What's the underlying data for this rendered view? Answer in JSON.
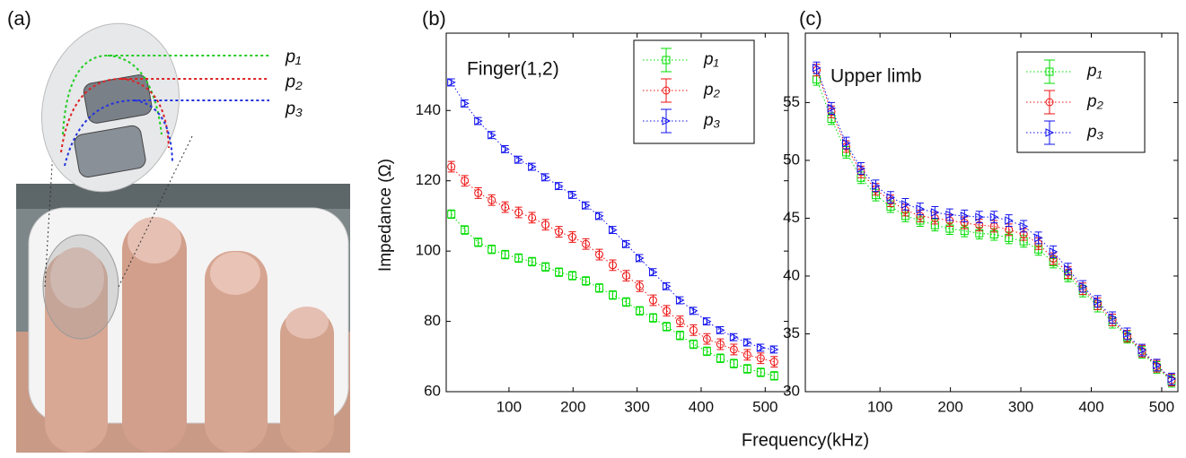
{
  "panel_a": {
    "label": "(a)",
    "levels": [
      "p₁",
      "p₂",
      "p₃"
    ]
  },
  "xlabel": "Frequency(kHz)",
  "chart_data": [
    {
      "type": "line",
      "panel": "(b)",
      "title": "Finger(1,2)",
      "ylabel": "Impedance (Ω)",
      "x": [
        10,
        31,
        52,
        73,
        94,
        115,
        136,
        157,
        178,
        199,
        220,
        241,
        262,
        283,
        304,
        325,
        346,
        367,
        388,
        409,
        430,
        451,
        472,
        493,
        514
      ],
      "xlim": [
        2,
        536
      ],
      "xticks": [
        100,
        200,
        300,
        400,
        500
      ],
      "ylim": [
        60,
        162
      ],
      "yticks": [
        60,
        80,
        100,
        120,
        140
      ],
      "legend": "upper right",
      "series": [
        {
          "name": "p₁",
          "color": "#00dd00",
          "marker": "square",
          "error": 1.2,
          "values": [
            110.5,
            106,
            102.5,
            100.5,
            99,
            98,
            97,
            95.5,
            94,
            93,
            91.5,
            89.5,
            87.5,
            85.5,
            83,
            81,
            78.5,
            76,
            73.5,
            71.5,
            69.5,
            68,
            66.5,
            65.5,
            64.5
          ]
        },
        {
          "name": "p₂",
          "color": "#ee1111",
          "marker": "circle",
          "error": 1.5,
          "values": [
            124,
            120,
            116.5,
            114.5,
            112.5,
            111,
            109.5,
            107.5,
            105.5,
            104,
            102,
            99,
            96,
            93,
            90,
            86,
            83,
            80,
            77.5,
            75,
            73.5,
            72,
            70.5,
            69.5,
            68.5
          ]
        },
        {
          "name": "p₃",
          "color": "#1111ee",
          "marker": "triangle",
          "error": 1,
          "values": [
            148,
            142,
            137,
            133,
            129,
            126,
            124,
            121,
            118.5,
            116,
            113,
            110,
            106,
            102,
            98,
            94,
            90,
            86,
            83,
            80,
            77.5,
            75.5,
            74,
            72.5,
            72
          ]
        }
      ]
    },
    {
      "type": "line",
      "panel": "(c)",
      "title": "Upper limb",
      "x": [
        10,
        31,
        52,
        73,
        94,
        115,
        136,
        157,
        178,
        199,
        220,
        241,
        262,
        283,
        304,
        325,
        346,
        367,
        388,
        409,
        430,
        451,
        472,
        493,
        514
      ],
      "xlim": [
        -6,
        523
      ],
      "xticks": [
        100,
        200,
        300,
        400,
        500
      ],
      "ylim": [
        30,
        61
      ],
      "yticks": [
        30,
        35,
        40,
        45,
        50,
        55
      ],
      "legend": "upper right",
      "series": [
        {
          "name": "p₁",
          "color": "#00dd00",
          "marker": "square",
          "error": 0.5,
          "values": [
            57,
            53.6,
            50.7,
            48.5,
            47,
            46,
            45.2,
            44.8,
            44.4,
            44.1,
            43.9,
            43.7,
            43.6,
            43.3,
            43,
            42.3,
            41.2,
            40,
            38.7,
            37.4,
            36,
            34.7,
            33.4,
            32.1,
            30.9
          ]
        },
        {
          "name": "p₂",
          "color": "#ee1111",
          "marker": "circle",
          "error": 0.5,
          "values": [
            57.8,
            54.2,
            51.2,
            49,
            47.5,
            46.5,
            45.7,
            45.2,
            45,
            44.8,
            44.6,
            44.4,
            44.3,
            44,
            43.6,
            42.8,
            41.5,
            40.3,
            38.9,
            37.6,
            36.2,
            34.8,
            33.5,
            32.2,
            31
          ]
        },
        {
          "name": "p₃",
          "color": "#1111ee",
          "marker": "triangle",
          "error": 0.5,
          "values": [
            58,
            54.5,
            51.5,
            49.3,
            47.8,
            46.8,
            46.2,
            45.8,
            45.5,
            45.3,
            45.2,
            45.1,
            45.1,
            44.8,
            44.3,
            43.3,
            42.1,
            40.6,
            39.1,
            37.8,
            36.4,
            35,
            33.6,
            32.3,
            31.1
          ]
        }
      ]
    }
  ]
}
